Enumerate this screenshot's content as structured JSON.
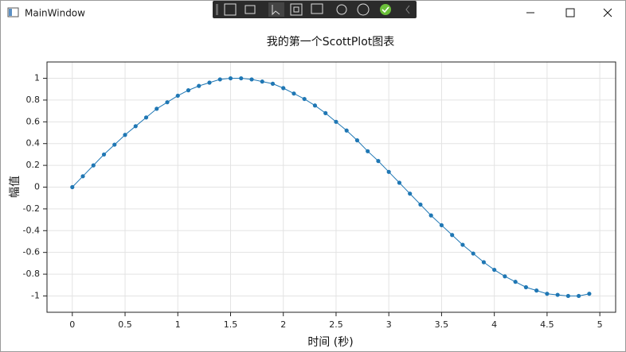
{
  "window": {
    "title": "MainWindow"
  },
  "chart_data": {
    "type": "line",
    "title": "我的第一个ScottPlot图表",
    "x_label": "时间 (秒)",
    "y_label": "幅值",
    "x": [
      0,
      0.1,
      0.2,
      0.3,
      0.4,
      0.5,
      0.6,
      0.7,
      0.8,
      0.9,
      1.0,
      1.1,
      1.2,
      1.3,
      1.4,
      1.5,
      1.6,
      1.7,
      1.8,
      1.9,
      2.0,
      2.1,
      2.2,
      2.3,
      2.4,
      2.5,
      2.6,
      2.7,
      2.8,
      2.9,
      3.0,
      3.1,
      3.2,
      3.3,
      3.4,
      3.5,
      3.6,
      3.7,
      3.8,
      3.9,
      4.0,
      4.1,
      4.2,
      4.3,
      4.4,
      4.5,
      4.6,
      4.7,
      4.8,
      4.9
    ],
    "values": [
      0,
      0.1,
      0.2,
      0.3,
      0.39,
      0.48,
      0.56,
      0.64,
      0.72,
      0.78,
      0.84,
      0.89,
      0.93,
      0.96,
      0.99,
      1.0,
      1.0,
      0.99,
      0.97,
      0.95,
      0.91,
      0.86,
      0.81,
      0.75,
      0.68,
      0.6,
      0.52,
      0.43,
      0.33,
      0.24,
      0.14,
      0.04,
      -0.06,
      -0.16,
      -0.26,
      -0.35,
      -0.44,
      -0.53,
      -0.61,
      -0.69,
      -0.76,
      -0.82,
      -0.87,
      -0.92,
      -0.95,
      -0.98,
      -0.99,
      -1.0,
      -1.0,
      -0.98
    ],
    "color": "#1f77b4",
    "markers": true,
    "xlim": [
      -0.24,
      5.15
    ],
    "xticks": [
      0,
      0.5,
      1,
      1.5,
      2,
      2.5,
      3,
      3.5,
      4,
      4.5,
      5
    ],
    "ylim": [
      -1.15,
      1.15
    ],
    "yticks": [
      -1,
      -0.8,
      -0.6,
      -0.4,
      -0.2,
      0,
      0.2,
      0.4,
      0.6,
      0.8,
      1
    ],
    "grid": true
  }
}
